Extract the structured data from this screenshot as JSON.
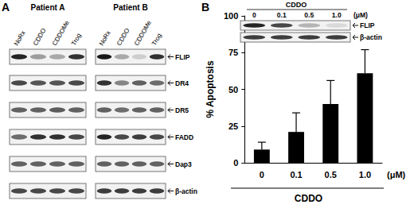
{
  "panel_a": {
    "label": "A",
    "patients": [
      "Patient A",
      "Patient B"
    ],
    "lanes": [
      "NoRx",
      "CDDO",
      "CDDOMe",
      "Trog"
    ],
    "proteins": [
      "FLIP",
      "DR4",
      "DR5",
      "FADD",
      "Dap3",
      "β-actin"
    ]
  },
  "panel_b": {
    "label": "B",
    "inset": {
      "title": "CDDO",
      "lanes": [
        "0",
        "0.1",
        "0.5",
        "1.0"
      ],
      "unit": "(μM)",
      "proteins": [
        "FLIP",
        "β-actin"
      ]
    }
  },
  "chart_data": {
    "type": "bar",
    "categories": [
      "0",
      "0.1",
      "0.5",
      "1.0"
    ],
    "values": [
      9,
      21,
      40,
      61
    ],
    "errors": [
      5,
      13,
      16,
      16
    ],
    "color": "#000000",
    "ylabel": "% Apoptosis",
    "xlabel": "CDDO",
    "x_unit": "(μM)",
    "ylim": [
      0,
      100
    ],
    "yticks": [
      0,
      25,
      50,
      75,
      100
    ],
    "grid": false
  }
}
